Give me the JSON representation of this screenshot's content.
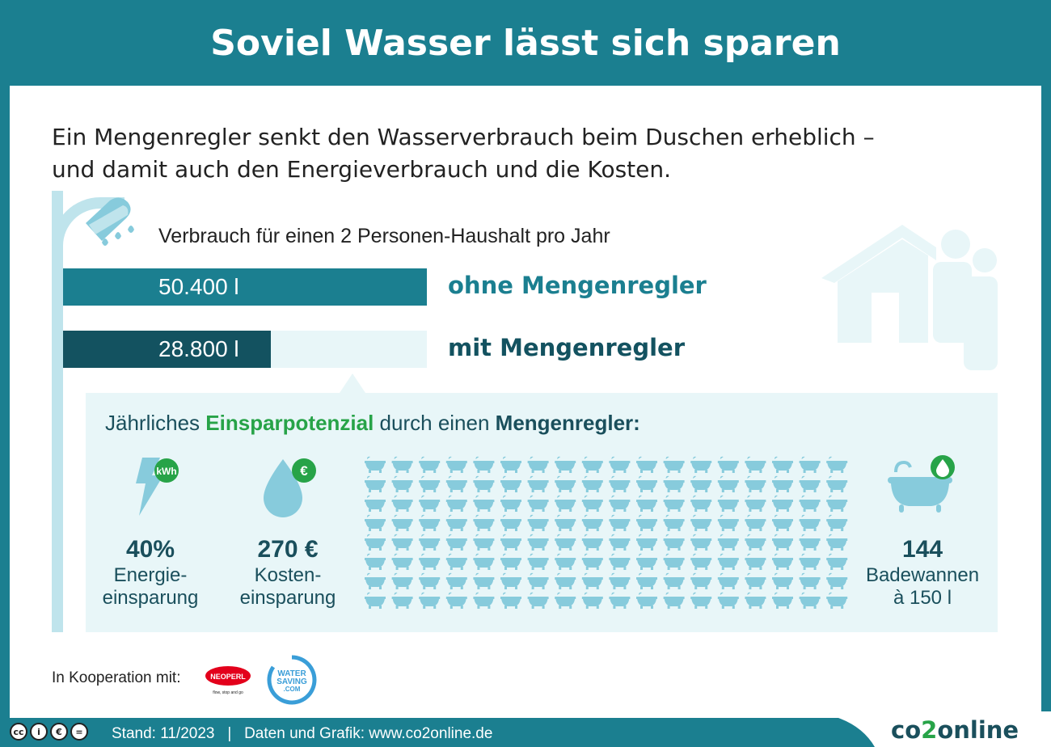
{
  "title": "Soviel Wasser lässt sich sparen",
  "intro": {
    "line1": "Ein Mengenregler senkt den Wasserverbrauch beim Duschen erheblich –",
    "line2": "und damit auch den Energieverbrauch und die Kosten."
  },
  "consumption": {
    "subtitle": "Verbrauch für einen 2 Personen-Haushalt pro Jahr",
    "chart_data": {
      "type": "bar",
      "orientation": "horizontal",
      "categories": [
        "ohne Mengenregler",
        "mit Mengenregler"
      ],
      "values": [
        50400,
        28800
      ],
      "value_labels": [
        "50.400 l",
        "28.800 l"
      ],
      "colors": [
        "#1b7f90",
        "#135260"
      ],
      "label_colors": [
        "#1b7f90",
        "#135260"
      ]
    }
  },
  "savings": {
    "title_part1": "Jährliches ",
    "title_highlight": "Einsparpotenzial",
    "title_part2": " durch einen ",
    "title_bold": "Mengenregler:",
    "energy": {
      "icon": "lightning-kwh-icon",
      "badge": "kWh",
      "value": "40%",
      "label_line1": "Energie-",
      "label_line2": "einsparung"
    },
    "cost": {
      "icon": "water-drop-euro-icon",
      "badge": "€",
      "value": "270 €",
      "label_line1": "Kosten-",
      "label_line2": "einsparung"
    },
    "bathtubs": {
      "icon": "bathtub-icon",
      "count": 144,
      "value": "144",
      "label_line1": "Badewannen",
      "label_line2": "à 150 l"
    }
  },
  "cooperation": {
    "label": "In Kooperation mit:",
    "partner1": "NEOPERL",
    "partner1_tagline": "flow, stop and go",
    "partner2_line1": "WATER",
    "partner2_line2": "SAVING",
    "partner2_line3": ".COM"
  },
  "footer": {
    "text": "Stand: 11/2023   |   Daten und Grafik: www.co2online.de",
    "brand_part1": "co",
    "brand_part2": "2",
    "brand_part3": "online"
  },
  "colors": {
    "teal": "#1b7f90",
    "dark_teal": "#135260",
    "light_blue": "#87cbdc",
    "pale": "#e8f6f8",
    "green": "#27a348"
  }
}
